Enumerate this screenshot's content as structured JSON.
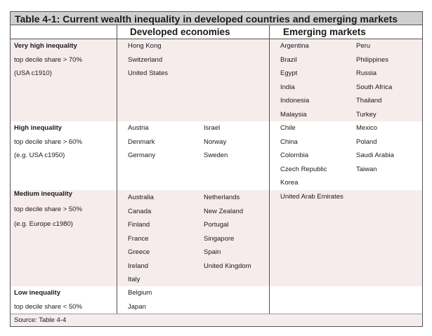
{
  "title": "Table 4-1: Current wealth inequality in developed countries and emerging markets",
  "headers": {
    "developed": "Developed economies",
    "emerging": "Emerging markets"
  },
  "rows": [
    {
      "label": "Very high inequality",
      "detail1": "top decile share > 70%",
      "detail2": "(USA c1910)",
      "developed_col1": [
        "Hong Kong",
        "Switzerland",
        "United States"
      ],
      "developed_col2": [],
      "emerging_col1": [
        "Argentina",
        "Brazil",
        "Egypt",
        "India",
        "Indonesia",
        "Malaysia"
      ],
      "emerging_col2": [
        "Peru",
        "Philippines",
        "Russia",
        "South Africa",
        "Thailand",
        "Turkey"
      ]
    },
    {
      "label": "High inequality",
      "detail1": "top decile share > 60%",
      "detail2": "(e.g. USA c1950)",
      "developed_col1": [
        "Austria",
        "Denmark",
        "Germany"
      ],
      "developed_col2": [
        "Israel",
        "Norway",
        "Sweden"
      ],
      "emerging_col1": [
        "Chile",
        "China",
        "Colombia",
        "Czech Republic",
        "Korea"
      ],
      "emerging_col2": [
        "Mexico",
        "Poland",
        "Saudi Arabia",
        "Taiwan"
      ]
    },
    {
      "label": "Medium inequality",
      "detail1": "top decile share > 50%",
      "detail2": "(e.g. Europe c1980)",
      "developed_col1": [
        "Australia",
        "Canada",
        "Finland",
        "France",
        "Greece",
        "Ireland",
        "Italy"
      ],
      "developed_col2": [
        "Netherlands",
        "New Zealand",
        "Portugal",
        "Singapore",
        "Spain",
        "United Kingdom"
      ],
      "emerging_col1": [
        "United Arab Emirates"
      ],
      "emerging_col2": []
    },
    {
      "label": "Low inequality",
      "detail1": "top decile share < 50%",
      "detail2": "",
      "developed_col1": [
        "Belgium",
        "Japan"
      ],
      "developed_col2": [],
      "emerging_col1": [],
      "emerging_col2": []
    }
  ],
  "source": "Source: Table 4-4"
}
